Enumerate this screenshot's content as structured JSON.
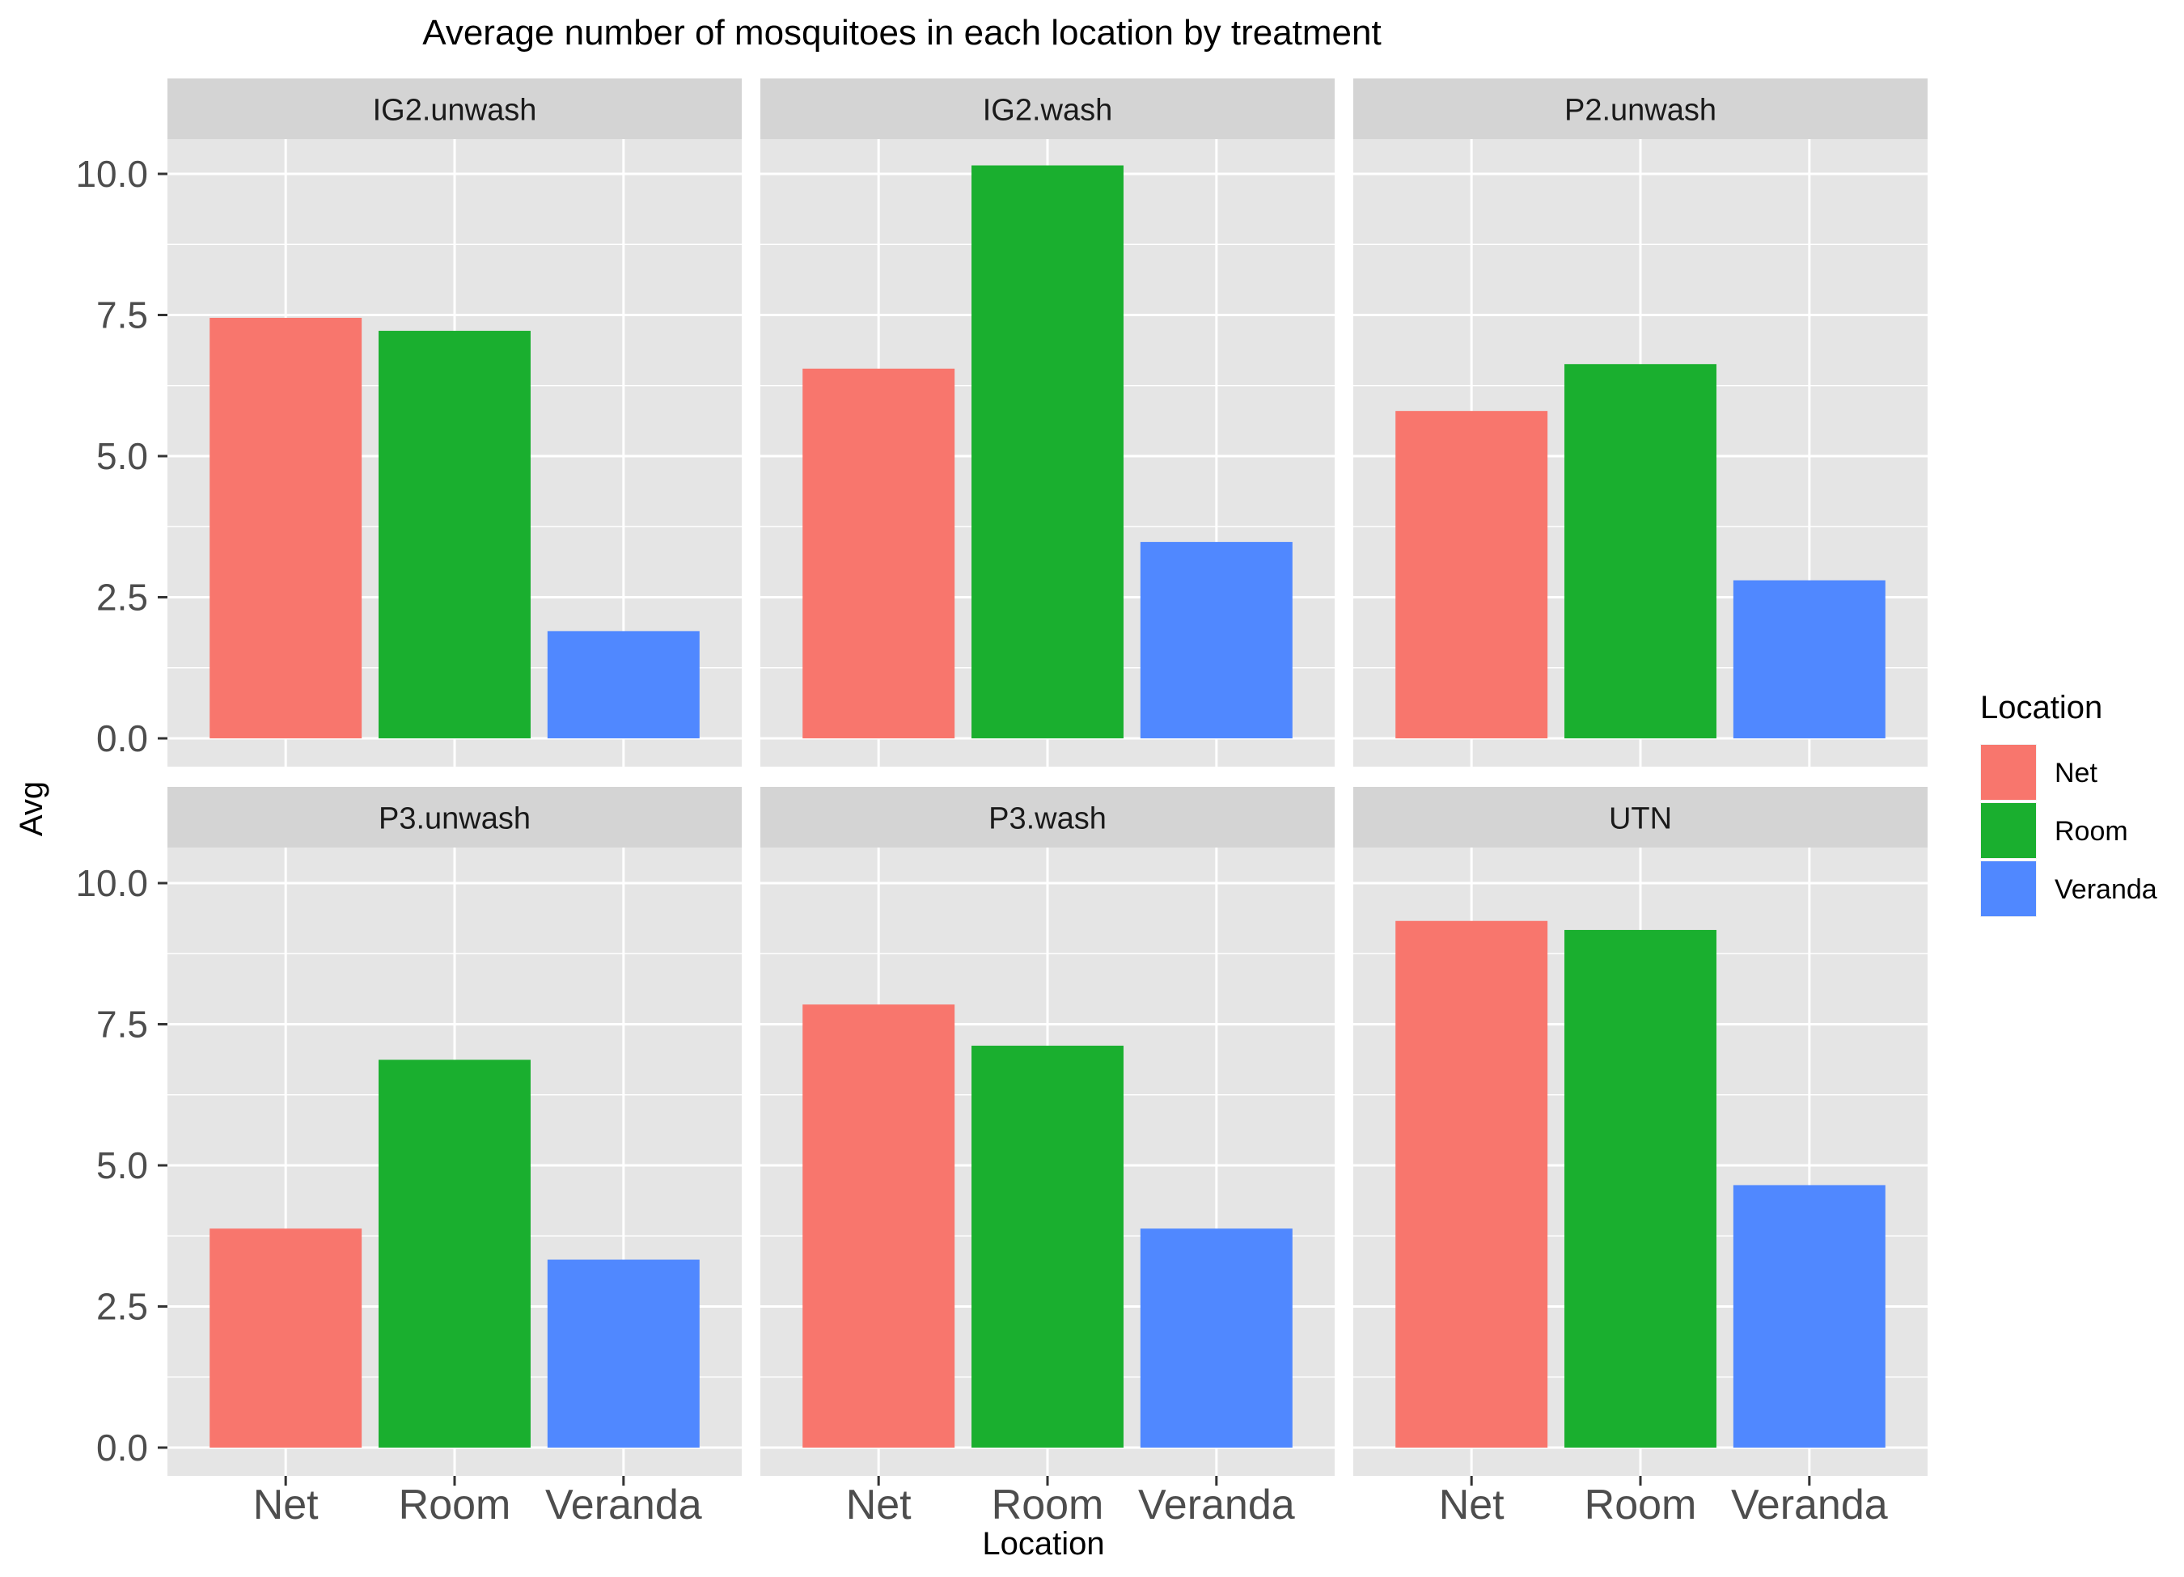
{
  "chart_data": {
    "type": "bar",
    "title": "Average number of mosquitoes in each location by treatment",
    "xlabel": "Location",
    "ylabel": "Avg",
    "ylim": [
      0,
      11
    ],
    "yticks": [
      "0.0",
      "2.5",
      "5.0",
      "7.5",
      "10.0"
    ],
    "ytick_values": [
      0,
      2.5,
      5,
      7.5,
      10
    ],
    "categories": [
      "Net",
      "Room",
      "Veranda"
    ],
    "legend": {
      "title": "Location",
      "position": "right",
      "entries": [
        "Net",
        "Room",
        "Veranda"
      ]
    },
    "colors": {
      "Net": "#F8766D",
      "Room": "#1AAF2F",
      "Veranda": "#5088FF",
      "panel_bg": "#E5E5E5",
      "strip_bg": "#D4D4D4",
      "grid": "#FFFFFF"
    },
    "grid": true,
    "facets": [
      {
        "name": "IG2.unwash",
        "values": [
          7.45,
          7.22,
          1.9
        ]
      },
      {
        "name": "IG2.wash",
        "values": [
          6.55,
          10.15,
          3.48
        ]
      },
      {
        "name": "P2.unwash",
        "values": [
          5.8,
          6.63,
          2.8
        ]
      },
      {
        "name": "P3.unwash",
        "values": [
          3.88,
          6.87,
          3.33
        ]
      },
      {
        "name": "P3.wash",
        "values": [
          7.85,
          7.12,
          3.88
        ]
      },
      {
        "name": "UTN",
        "values": [
          9.33,
          9.17,
          4.65
        ]
      }
    ]
  }
}
